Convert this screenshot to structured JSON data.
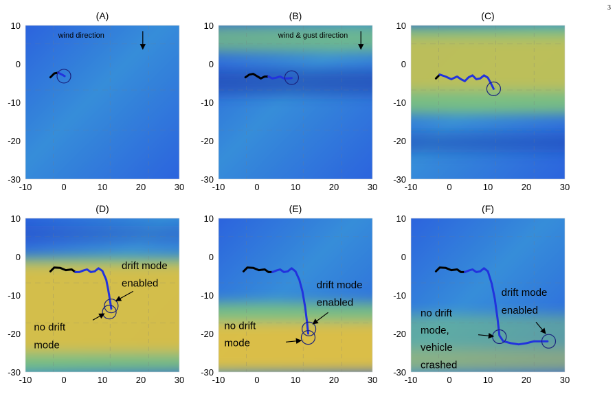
{
  "page_number": "3",
  "colors": {
    "blue": "#2c64dd",
    "cyan": "#3fb0d6",
    "green": "#7fc47a",
    "yellow": "#f2bf3a",
    "deep_blue": "#1d3fae",
    "path_black": "#000000",
    "path_blue": "#2233dd",
    "circle": "#1a237e"
  },
  "chart_data": [
    {
      "type": "line",
      "title": "(A)",
      "xlim": [
        -10,
        30
      ],
      "ylim": [
        -30,
        10
      ],
      "xticks": [
        "-10",
        "0",
        "10",
        "20",
        "30"
      ],
      "yticks": [
        "10",
        "0",
        "-10",
        "-20",
        "-30"
      ],
      "background": "blue",
      "bands": [],
      "trajectory": [
        [
          -3.5,
          -3.5
        ],
        [
          -2.5,
          -2.5
        ],
        [
          -1.5,
          -2.3
        ],
        [
          -0.5,
          -2.8
        ],
        [
          0.2,
          -3.2
        ]
      ],
      "blue_from": 2,
      "circles": [
        [
          0,
          -3.2
        ]
      ],
      "annotations": [
        {
          "text": "wind direction",
          "size": "small",
          "x": -1.5,
          "y": 6.8
        }
      ],
      "arrows": [
        {
          "from": [
            20.5,
            8.5
          ],
          "to": [
            20.5,
            3.8
          ]
        }
      ]
    },
    {
      "type": "line",
      "title": "(B)",
      "xlim": [
        -10,
        30
      ],
      "ylim": [
        -30,
        10
      ],
      "xticks": [
        "-10",
        "0",
        "10",
        "20",
        "30"
      ],
      "yticks": [
        "10",
        "0",
        "-10",
        "-20",
        "-30"
      ],
      "background": "blue",
      "bands": [
        {
          "color": "green",
          "y_from": 10,
          "y_to": 3,
          "opacity": 0.75
        },
        {
          "color": "deep_blue",
          "y_from": -1.5,
          "y_to": -8,
          "opacity": 0.6
        }
      ],
      "trajectory": [
        [
          -3,
          -3.5
        ],
        [
          -2,
          -2.8
        ],
        [
          -1,
          -2.6
        ],
        [
          0,
          -3.2
        ],
        [
          1,
          -3.8
        ],
        [
          2,
          -3.3
        ],
        [
          3,
          -3.3
        ],
        [
          4,
          -3.8
        ],
        [
          5,
          -3.6
        ],
        [
          6,
          -3.3
        ],
        [
          7,
          -3.8
        ],
        [
          8,
          -3.8
        ],
        [
          9,
          -3.7
        ]
      ],
      "blue_from": 6,
      "circles": [
        [
          9,
          -3.6
        ]
      ],
      "annotations": [
        {
          "text": "wind & gust direction",
          "size": "small",
          "x": 5.5,
          "y": 6.8
        }
      ],
      "arrows": [
        {
          "from": [
            27,
            8.5
          ],
          "to": [
            27,
            3.8
          ]
        }
      ]
    },
    {
      "type": "line",
      "title": "(C)",
      "xlim": [
        -10,
        30
      ],
      "ylim": [
        -30,
        10
      ],
      "xticks": [
        "-10",
        "0",
        "10",
        "20",
        "30"
      ],
      "yticks": [
        "10",
        "0",
        "-10",
        "-20",
        "-30"
      ],
      "background": "blue",
      "bands": [
        {
          "color": "green",
          "y_from": 10,
          "y_to": -13,
          "opacity": 0.9
        },
        {
          "color": "yellow",
          "y_from": 7,
          "y_to": -7,
          "opacity": 0.55
        },
        {
          "color": "deep_blue",
          "y_from": -18,
          "y_to": -23,
          "opacity": 0.45
        }
      ],
      "trajectory": [
        [
          -3.5,
          -3.8
        ],
        [
          -2.5,
          -2.8
        ],
        [
          -1,
          -3.3
        ],
        [
          0.5,
          -4
        ],
        [
          2,
          -3.3
        ],
        [
          3,
          -4
        ],
        [
          4,
          -4.5
        ],
        [
          5,
          -3.5
        ],
        [
          6,
          -3
        ],
        [
          7,
          -4
        ],
        [
          8,
          -3.8
        ],
        [
          9,
          -3
        ],
        [
          10,
          -3.6
        ],
        [
          11,
          -5.5
        ],
        [
          11.5,
          -6.5
        ]
      ],
      "blue_from": 1,
      "circles": [
        [
          11.5,
          -6.5
        ]
      ],
      "annotations": [],
      "arrows": []
    },
    {
      "type": "line",
      "title": "(D)",
      "xlim": [
        -10,
        30
      ],
      "ylim": [
        -30,
        10
      ],
      "xticks": [
        "-10",
        "0",
        "10",
        "20",
        "30"
      ],
      "yticks": [
        "10",
        "0",
        "-10",
        "-20",
        "-30"
      ],
      "background": "blue",
      "bands": [
        {
          "color": "green",
          "y_from": 0,
          "y_to": -30,
          "opacity": 0.9
        },
        {
          "color": "yellow",
          "y_from": -2,
          "y_to": -25,
          "opacity": 0.75
        },
        {
          "color": "deep_blue",
          "y_from": 8,
          "y_to": 4,
          "opacity": 0.3
        }
      ],
      "trajectory": [
        [
          -3.5,
          -3.8
        ],
        [
          -2.5,
          -2.8
        ],
        [
          -1,
          -2.9
        ],
        [
          0.5,
          -3.5
        ],
        [
          2,
          -3.3
        ],
        [
          3,
          -4
        ],
        [
          4,
          -4
        ],
        [
          5,
          -3.6
        ],
        [
          6,
          -3.3
        ],
        [
          7,
          -4
        ],
        [
          8,
          -3.8
        ],
        [
          9,
          -3
        ],
        [
          10,
          -3.7
        ],
        [
          11,
          -6
        ],
        [
          11.5,
          -8.5
        ],
        [
          12,
          -11.5
        ],
        [
          12.3,
          -13.5
        ]
      ],
      "blue_from": 5,
      "circles": [
        [
          12.3,
          -12.8
        ],
        [
          11.8,
          -14.4
        ]
      ],
      "annotations": [
        {
          "text": "drift mode",
          "size": "big",
          "x": 15,
          "y": -3.2
        },
        {
          "text": "enabled",
          "size": "big",
          "x": 15,
          "y": -7.8
        },
        {
          "text": "no drift",
          "size": "big",
          "x": -7.8,
          "y": -19.2
        },
        {
          "text": "mode",
          "size": "big",
          "x": -7.8,
          "y": -23.8
        }
      ],
      "arrows": [
        {
          "from": [
            18,
            -9
          ],
          "to": [
            13.5,
            -11.5
          ]
        },
        {
          "from": [
            7.5,
            -16.5
          ],
          "to": [
            10.5,
            -14.8
          ]
        }
      ]
    },
    {
      "type": "line",
      "title": "(E)",
      "xlim": [
        -10,
        30
      ],
      "ylim": [
        -30,
        10
      ],
      "xticks": [
        "-10",
        "0",
        "10",
        "20",
        "30"
      ],
      "yticks": [
        "10",
        "0",
        "-10",
        "-20",
        "-30"
      ],
      "background": "blue",
      "bands": [
        {
          "color": "green",
          "y_from": -12,
          "y_to": -30,
          "opacity": 0.9
        },
        {
          "color": "yellow",
          "y_from": -17,
          "y_to": -30,
          "opacity": 0.8
        }
      ],
      "trajectory": [
        [
          -3.5,
          -3.8
        ],
        [
          -2.5,
          -2.8
        ],
        [
          -1,
          -2.9
        ],
        [
          0.5,
          -3.5
        ],
        [
          2,
          -3.3
        ],
        [
          3,
          -4
        ],
        [
          4,
          -4
        ],
        [
          5,
          -3.6
        ],
        [
          6,
          -3.3
        ],
        [
          7,
          -4
        ],
        [
          8,
          -3.8
        ],
        [
          9,
          -3
        ],
        [
          10,
          -3.8
        ],
        [
          11,
          -6
        ],
        [
          11.8,
          -9
        ],
        [
          12.5,
          -13
        ],
        [
          13,
          -17
        ],
        [
          13.3,
          -20
        ]
      ],
      "blue_from": 6,
      "circles": [
        [
          13.5,
          -18.8
        ],
        [
          13.3,
          -21
        ]
      ],
      "annotations": [
        {
          "text": "drift mode",
          "size": "big",
          "x": 15.5,
          "y": -8.2
        },
        {
          "text": "enabled",
          "size": "big",
          "x": 15.5,
          "y": -12.8
        },
        {
          "text": "no drift",
          "size": "big",
          "x": -8.5,
          "y": -18.8
        },
        {
          "text": "mode",
          "size": "big",
          "x": -8.5,
          "y": -23.3
        }
      ],
      "arrows": [
        {
          "from": [
            18.5,
            -14.5
          ],
          "to": [
            14.5,
            -17.5
          ]
        },
        {
          "from": [
            7.5,
            -22.2
          ],
          "to": [
            11.5,
            -21.8
          ]
        }
      ]
    },
    {
      "type": "line",
      "title": "(F)",
      "xlim": [
        -10,
        30
      ],
      "ylim": [
        -30,
        10
      ],
      "xticks": [
        "-10",
        "0",
        "10",
        "20",
        "30"
      ],
      "yticks": [
        "10",
        "0",
        "-10",
        "-20",
        "-30"
      ],
      "background": "blue",
      "bands": [
        {
          "color": "green",
          "y_from": -15,
          "y_to": -30,
          "opacity": 0.55
        },
        {
          "color": "yellow",
          "y_from": -24,
          "y_to": -30,
          "opacity": 0.3
        }
      ],
      "trajectory": [
        [
          -3.5,
          -3.8
        ],
        [
          -2.5,
          -2.8
        ],
        [
          -1,
          -2.9
        ],
        [
          0.5,
          -3.5
        ],
        [
          2,
          -3.3
        ],
        [
          3,
          -4
        ],
        [
          4,
          -4
        ],
        [
          5,
          -3.6
        ],
        [
          6,
          -3.3
        ],
        [
          7,
          -4
        ],
        [
          8,
          -3.8
        ],
        [
          9,
          -3
        ],
        [
          10,
          -3.8
        ],
        [
          11,
          -7
        ],
        [
          11.8,
          -11
        ],
        [
          12.5,
          -16
        ],
        [
          13,
          -20.5
        ],
        [
          14,
          -22
        ],
        [
          16,
          -22.5
        ],
        [
          18,
          -22.8
        ],
        [
          20,
          -22.5
        ],
        [
          22,
          -22
        ],
        [
          24,
          -22
        ],
        [
          25.5,
          -22
        ]
      ],
      "blue_from": 6,
      "circles": [
        [
          13,
          -20.8
        ],
        [
          25.8,
          -22
        ]
      ],
      "annotations": [
        {
          "text": "drift mode",
          "size": "big",
          "x": 13.5,
          "y": -10.2
        },
        {
          "text": "enabled",
          "size": "big",
          "x": 13.5,
          "y": -14.8
        },
        {
          "text": "no drift",
          "size": "big",
          "x": -7.5,
          "y": -15.5
        },
        {
          "text": "mode,",
          "size": "big",
          "x": -7.5,
          "y": -20
        },
        {
          "text": "vehicle",
          "size": "big",
          "x": -7.5,
          "y": -24.5
        },
        {
          "text": "crashed",
          "size": "big",
          "x": -7.5,
          "y": -29
        }
      ],
      "arrows": [
        {
          "from": [
            22.5,
            -17
          ],
          "to": [
            25,
            -20
          ]
        },
        {
          "from": [
            7.5,
            -20.3
          ],
          "to": [
            11.5,
            -20.7
          ]
        }
      ]
    }
  ]
}
